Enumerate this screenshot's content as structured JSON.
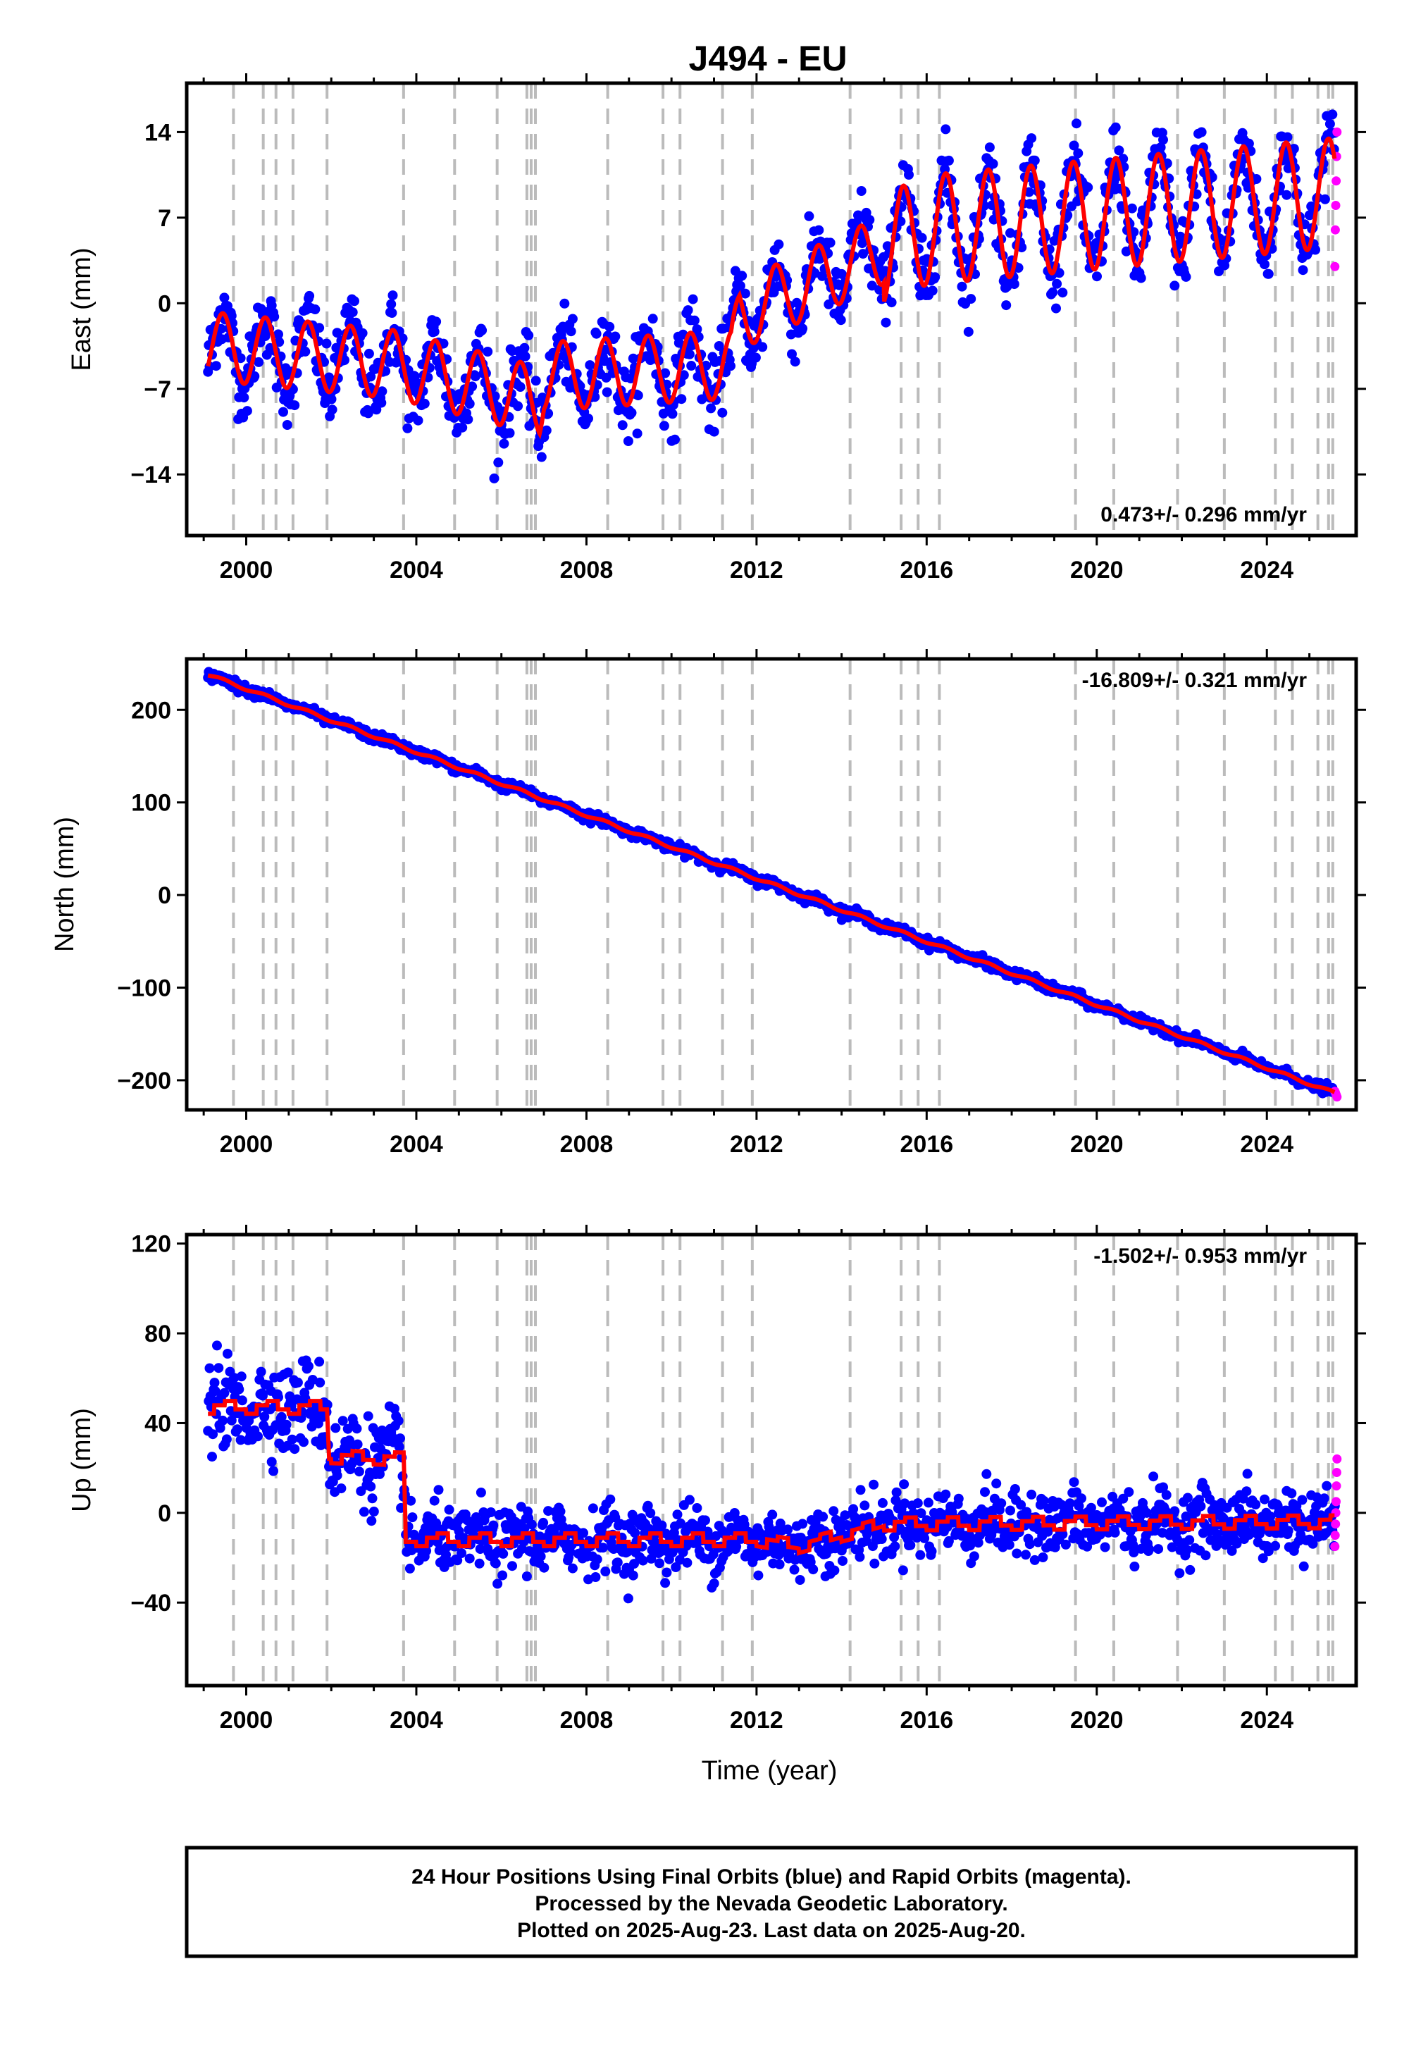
{
  "title": "J494 - EU",
  "xlabel": "Time (year)",
  "x_ticks": [
    2000,
    2004,
    2008,
    2012,
    2016,
    2020,
    2024
  ],
  "x_range": [
    1998.6,
    2026.1
  ],
  "event_lines": [
    1999.7,
    2000.4,
    2000.7,
    2001.1,
    2001.9,
    2003.7,
    2004.9,
    2005.9,
    2006.6,
    2006.7,
    2006.8,
    2008.5,
    2009.8,
    2010.2,
    2011.2,
    2011.9,
    2014.2,
    2015.4,
    2015.8,
    2016.3,
    2019.5,
    2020.4,
    2021.9,
    2023.0,
    2024.2,
    2024.6,
    2025.2,
    2025.45,
    2025.55
  ],
  "colors": {
    "final": "#0000ff",
    "rapid": "#ff00ff",
    "model": "#ff0000",
    "events": "#bbbbbb"
  },
  "footer": {
    "line1": "24 Hour Positions Using Final Orbits (blue) and Rapid Orbits (magenta).",
    "line2": "Processed by the Nevada Geodetic Laboratory.",
    "line3": "Plotted on 2025-Aug-23. Last data on 2025-Aug-20."
  },
  "chart_data": [
    {
      "type": "scatter",
      "ylabel": "East (mm)",
      "rate": "0.473+/- 0.296 mm/yr",
      "rate_position": "bottom-right",
      "ylim": [
        -19,
        18
      ],
      "y_ticks": [
        14,
        7,
        0,
        -7,
        -14
      ],
      "y_tick_labels": [
        "14",
        "7",
        "0",
        "−7",
        "−14"
      ],
      "trend": [
        [
          1999.1,
          -3.5
        ],
        [
          2003.5,
          -5.0
        ],
        [
          2006.9,
          -8.0
        ],
        [
          2007.0,
          -6.0
        ],
        [
          2011.4,
          -5.0
        ],
        [
          2011.6,
          -1.0
        ],
        [
          2016.0,
          6.0
        ],
        [
          2025.5,
          9.0
        ]
      ],
      "seasonal_amplitude": 2.8,
      "noise_sd": 1.5,
      "rapid": {
        "x_start": 2025.6,
        "x_end": 2025.65,
        "values": [
          3,
          6,
          8,
          10,
          12,
          14
        ]
      }
    },
    {
      "type": "scatter",
      "ylabel": "North (mm)",
      "rate": "-16.809+/- 0.321 mm/yr",
      "rate_position": "top-right",
      "ylim": [
        -232,
        255
      ],
      "y_ticks": [
        200,
        100,
        0,
        -100,
        -200
      ],
      "y_tick_labels": [
        "200",
        "100",
        "0",
        "−100",
        "−200"
      ],
      "trend": [
        [
          1999.1,
          238
        ],
        [
          2025.6,
          -214
        ]
      ],
      "seasonal_amplitude": 1.5,
      "noise_sd": 2.5,
      "rapid": {
        "x_start": 2025.6,
        "x_end": 2025.65,
        "values": [
          -212,
          -214,
          -216,
          -218
        ]
      }
    },
    {
      "type": "scatter",
      "ylabel": "Up (mm)",
      "rate": "-1.502+/- 0.953 mm/yr",
      "rate_position": "top-right",
      "ylim": [
        -77,
        124
      ],
      "y_ticks": [
        120,
        80,
        40,
        0,
        -40
      ],
      "y_tick_labels": [
        "120",
        "80",
        "40",
        "0",
        "−40"
      ],
      "trend": [
        [
          1999.1,
          47
        ],
        [
          2001.9,
          47
        ],
        [
          2001.95,
          25
        ],
        [
          2003.7,
          24
        ],
        [
          2003.75,
          -12
        ],
        [
          2012.0,
          -12
        ],
        [
          2013.0,
          -15
        ],
        [
          2015.0,
          -5
        ],
        [
          2025.5,
          -4
        ]
      ],
      "seasonal_amplitude": 3,
      "noise_sd": 7,
      "rapid": {
        "x_start": 2025.6,
        "x_end": 2025.65,
        "values": [
          -15,
          -10,
          -5,
          0,
          5,
          12,
          18,
          24
        ]
      }
    }
  ]
}
